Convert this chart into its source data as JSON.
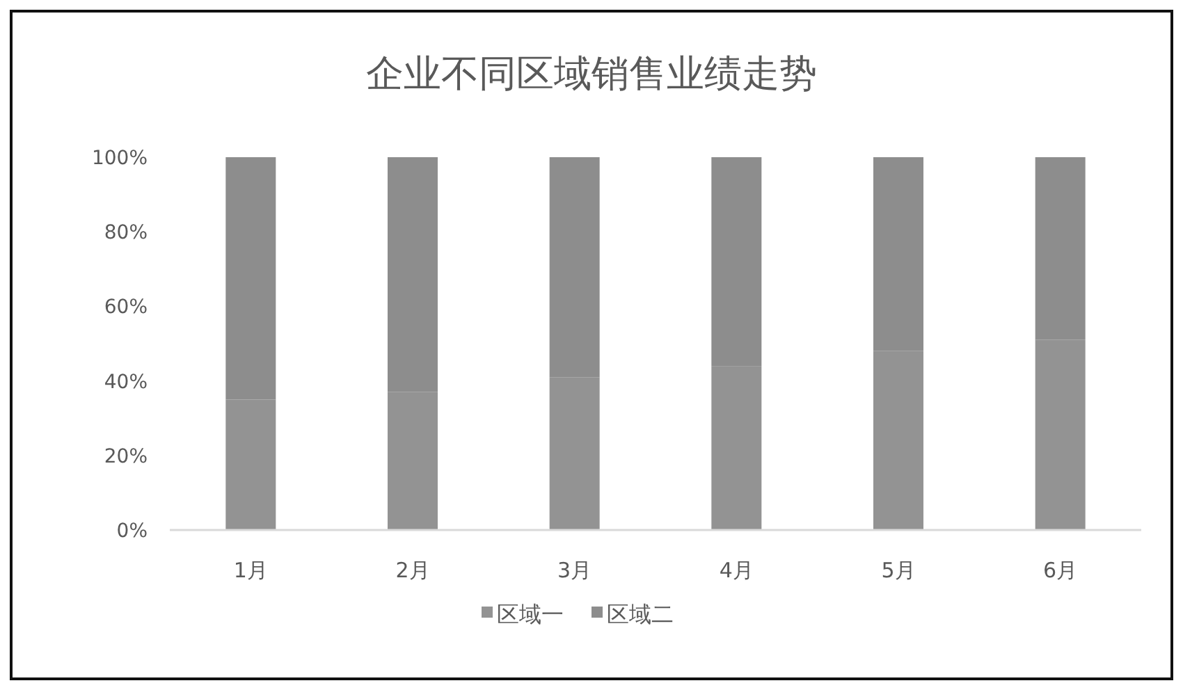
{
  "chart_data": {
    "type": "bar",
    "title": "企业不同区域销售业绩走势",
    "stacked": true,
    "categories": [
      "1月",
      "2月",
      "3月",
      "4月",
      "5月",
      "6月"
    ],
    "series": [
      {
        "name": "区域一",
        "color": "#939393",
        "values": [
          35,
          37,
          41,
          44,
          48,
          51
        ]
      },
      {
        "name": "区域二",
        "color": "#8d8d8d",
        "values": [
          65,
          63,
          59,
          56,
          52,
          49
        ]
      }
    ],
    "ylim": [
      0,
      100
    ],
    "yticks": [
      {
        "value": 0,
        "label": "0%"
      },
      {
        "value": 20,
        "label": "20%"
      },
      {
        "value": 40,
        "label": "40%"
      },
      {
        "value": 60,
        "label": "60%"
      },
      {
        "value": 80,
        "label": "80%"
      },
      {
        "value": 100,
        "label": "100%"
      }
    ],
    "grid": false,
    "legend": "bottom"
  }
}
